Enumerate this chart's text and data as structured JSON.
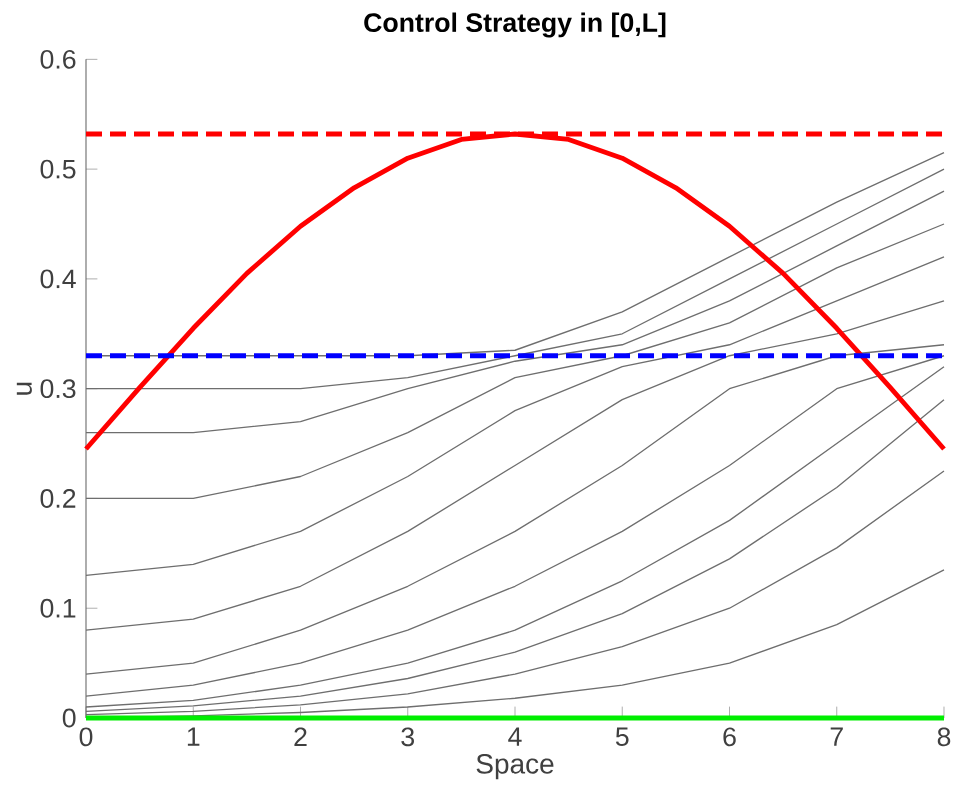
{
  "chart_data": {
    "type": "line",
    "title": "Control Strategy in [0,L]",
    "xlabel": "Space",
    "ylabel": "u",
    "x": [
      0,
      1,
      2,
      3,
      4,
      5,
      6,
      7,
      8
    ],
    "xlim": [
      0,
      8
    ],
    "ylim": [
      0,
      0.6
    ],
    "xticks": [
      0,
      1,
      2,
      3,
      4,
      5,
      6,
      7,
      8
    ],
    "yticks": [
      0,
      0.1,
      0.2,
      0.3,
      0.4,
      0.5,
      0.6
    ],
    "grid": false,
    "marker": "none",
    "series": [
      {
        "color": "#6e6e6e",
        "values": [
          0,
          0.002,
          0.005,
          0.01,
          0.018,
          0.03,
          0.05,
          0.085,
          0.135
        ]
      },
      {
        "color": "#6e6e6e",
        "values": [
          0.003,
          0.006,
          0.012,
          0.022,
          0.04,
          0.065,
          0.1,
          0.155,
          0.225
        ]
      },
      {
        "color": "#6e6e6e",
        "values": [
          0.006,
          0.011,
          0.02,
          0.036,
          0.06,
          0.095,
          0.145,
          0.21,
          0.29
        ]
      },
      {
        "color": "#6e6e6e",
        "values": [
          0.01,
          0.016,
          0.03,
          0.05,
          0.08,
          0.125,
          0.18,
          0.25,
          0.32
        ]
      },
      {
        "color": "#6e6e6e",
        "values": [
          0.02,
          0.03,
          0.05,
          0.08,
          0.12,
          0.17,
          0.23,
          0.3,
          0.33
        ]
      },
      {
        "color": "#6e6e6e",
        "values": [
          0.04,
          0.05,
          0.08,
          0.12,
          0.17,
          0.23,
          0.3,
          0.33,
          0.34
        ]
      },
      {
        "color": "#6e6e6e",
        "values": [
          0.08,
          0.09,
          0.12,
          0.17,
          0.23,
          0.29,
          0.33,
          0.35,
          0.38
        ]
      },
      {
        "color": "#6e6e6e",
        "values": [
          0.13,
          0.14,
          0.17,
          0.22,
          0.28,
          0.32,
          0.34,
          0.38,
          0.42
        ]
      },
      {
        "color": "#6e6e6e",
        "values": [
          0.2,
          0.2,
          0.22,
          0.26,
          0.31,
          0.33,
          0.36,
          0.41,
          0.45
        ]
      },
      {
        "color": "#6e6e6e",
        "values": [
          0.26,
          0.26,
          0.27,
          0.3,
          0.325,
          0.34,
          0.38,
          0.43,
          0.48
        ]
      },
      {
        "color": "#6e6e6e",
        "values": [
          0.3,
          0.3,
          0.3,
          0.31,
          0.33,
          0.35,
          0.4,
          0.45,
          0.5
        ]
      },
      {
        "color": "#6e6e6e",
        "values": [
          0.33,
          0.33,
          0.33,
          0.33,
          0.335,
          0.37,
          0.42,
          0.47,
          0.515
        ]
      },
      {
        "color": "#00ee00",
        "x": [
          0,
          8
        ],
        "values": [
          0,
          0
        ]
      },
      {
        "color": "#ff0000",
        "x": [
          0,
          0.5,
          1,
          1.5,
          2,
          2.5,
          3,
          3.5,
          4,
          4.5,
          5,
          5.5,
          6,
          6.5,
          7,
          7.5,
          8
        ],
        "values": [
          0.245,
          0.301,
          0.355,
          0.405,
          0.448,
          0.483,
          0.51,
          0.527,
          0.532,
          0.527,
          0.51,
          0.483,
          0.448,
          0.405,
          0.355,
          0.301,
          0.245
        ]
      }
    ],
    "ref_lines": [
      {
        "axis": "y",
        "value": 0.532,
        "color": "#ff0000",
        "line_style": "dashed"
      },
      {
        "axis": "y",
        "value": 0.33,
        "color": "#0000ff",
        "line_style": "dashed"
      }
    ]
  }
}
